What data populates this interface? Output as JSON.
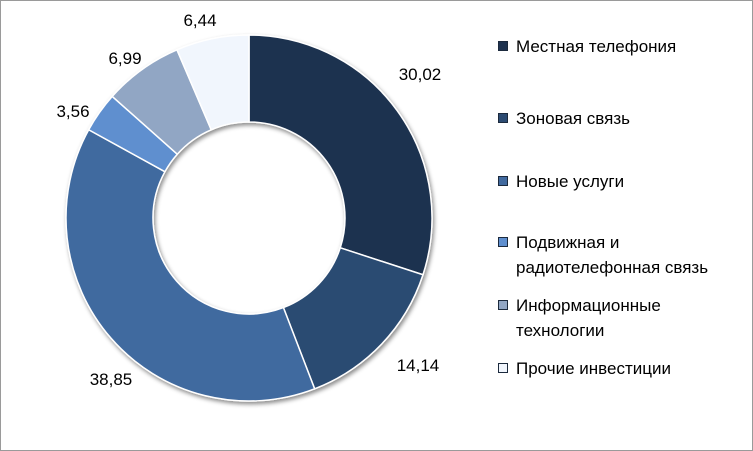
{
  "chart_data": {
    "type": "pie",
    "donut": true,
    "title": "",
    "categories": [
      "Местная телефония",
      "Зоновая связь",
      "Новые услуги",
      "Подвижная и радиотелефонная связь",
      "Информационные технологии",
      "Прочие инвестиции"
    ],
    "values": [
      30.02,
      14.14,
      38.85,
      3.56,
      6.99,
      6.44
    ],
    "value_labels": [
      "30,02",
      "14,14",
      "38,85",
      "3,56",
      "6,99",
      "6,44"
    ],
    "colors": [
      "#1f3350",
      "#2c4b72",
      "#416a9f",
      "#5f8fcf",
      "#91a6c4",
      "#f1f6fd"
    ],
    "legend": {
      "placement": "right",
      "items": [
        "Местная телефония",
        "Зоновая связь",
        "Новые услуги",
        "Подвижная и радиотелефонная связь",
        "Информационные технологии",
        "Прочие инвестиции"
      ]
    }
  }
}
